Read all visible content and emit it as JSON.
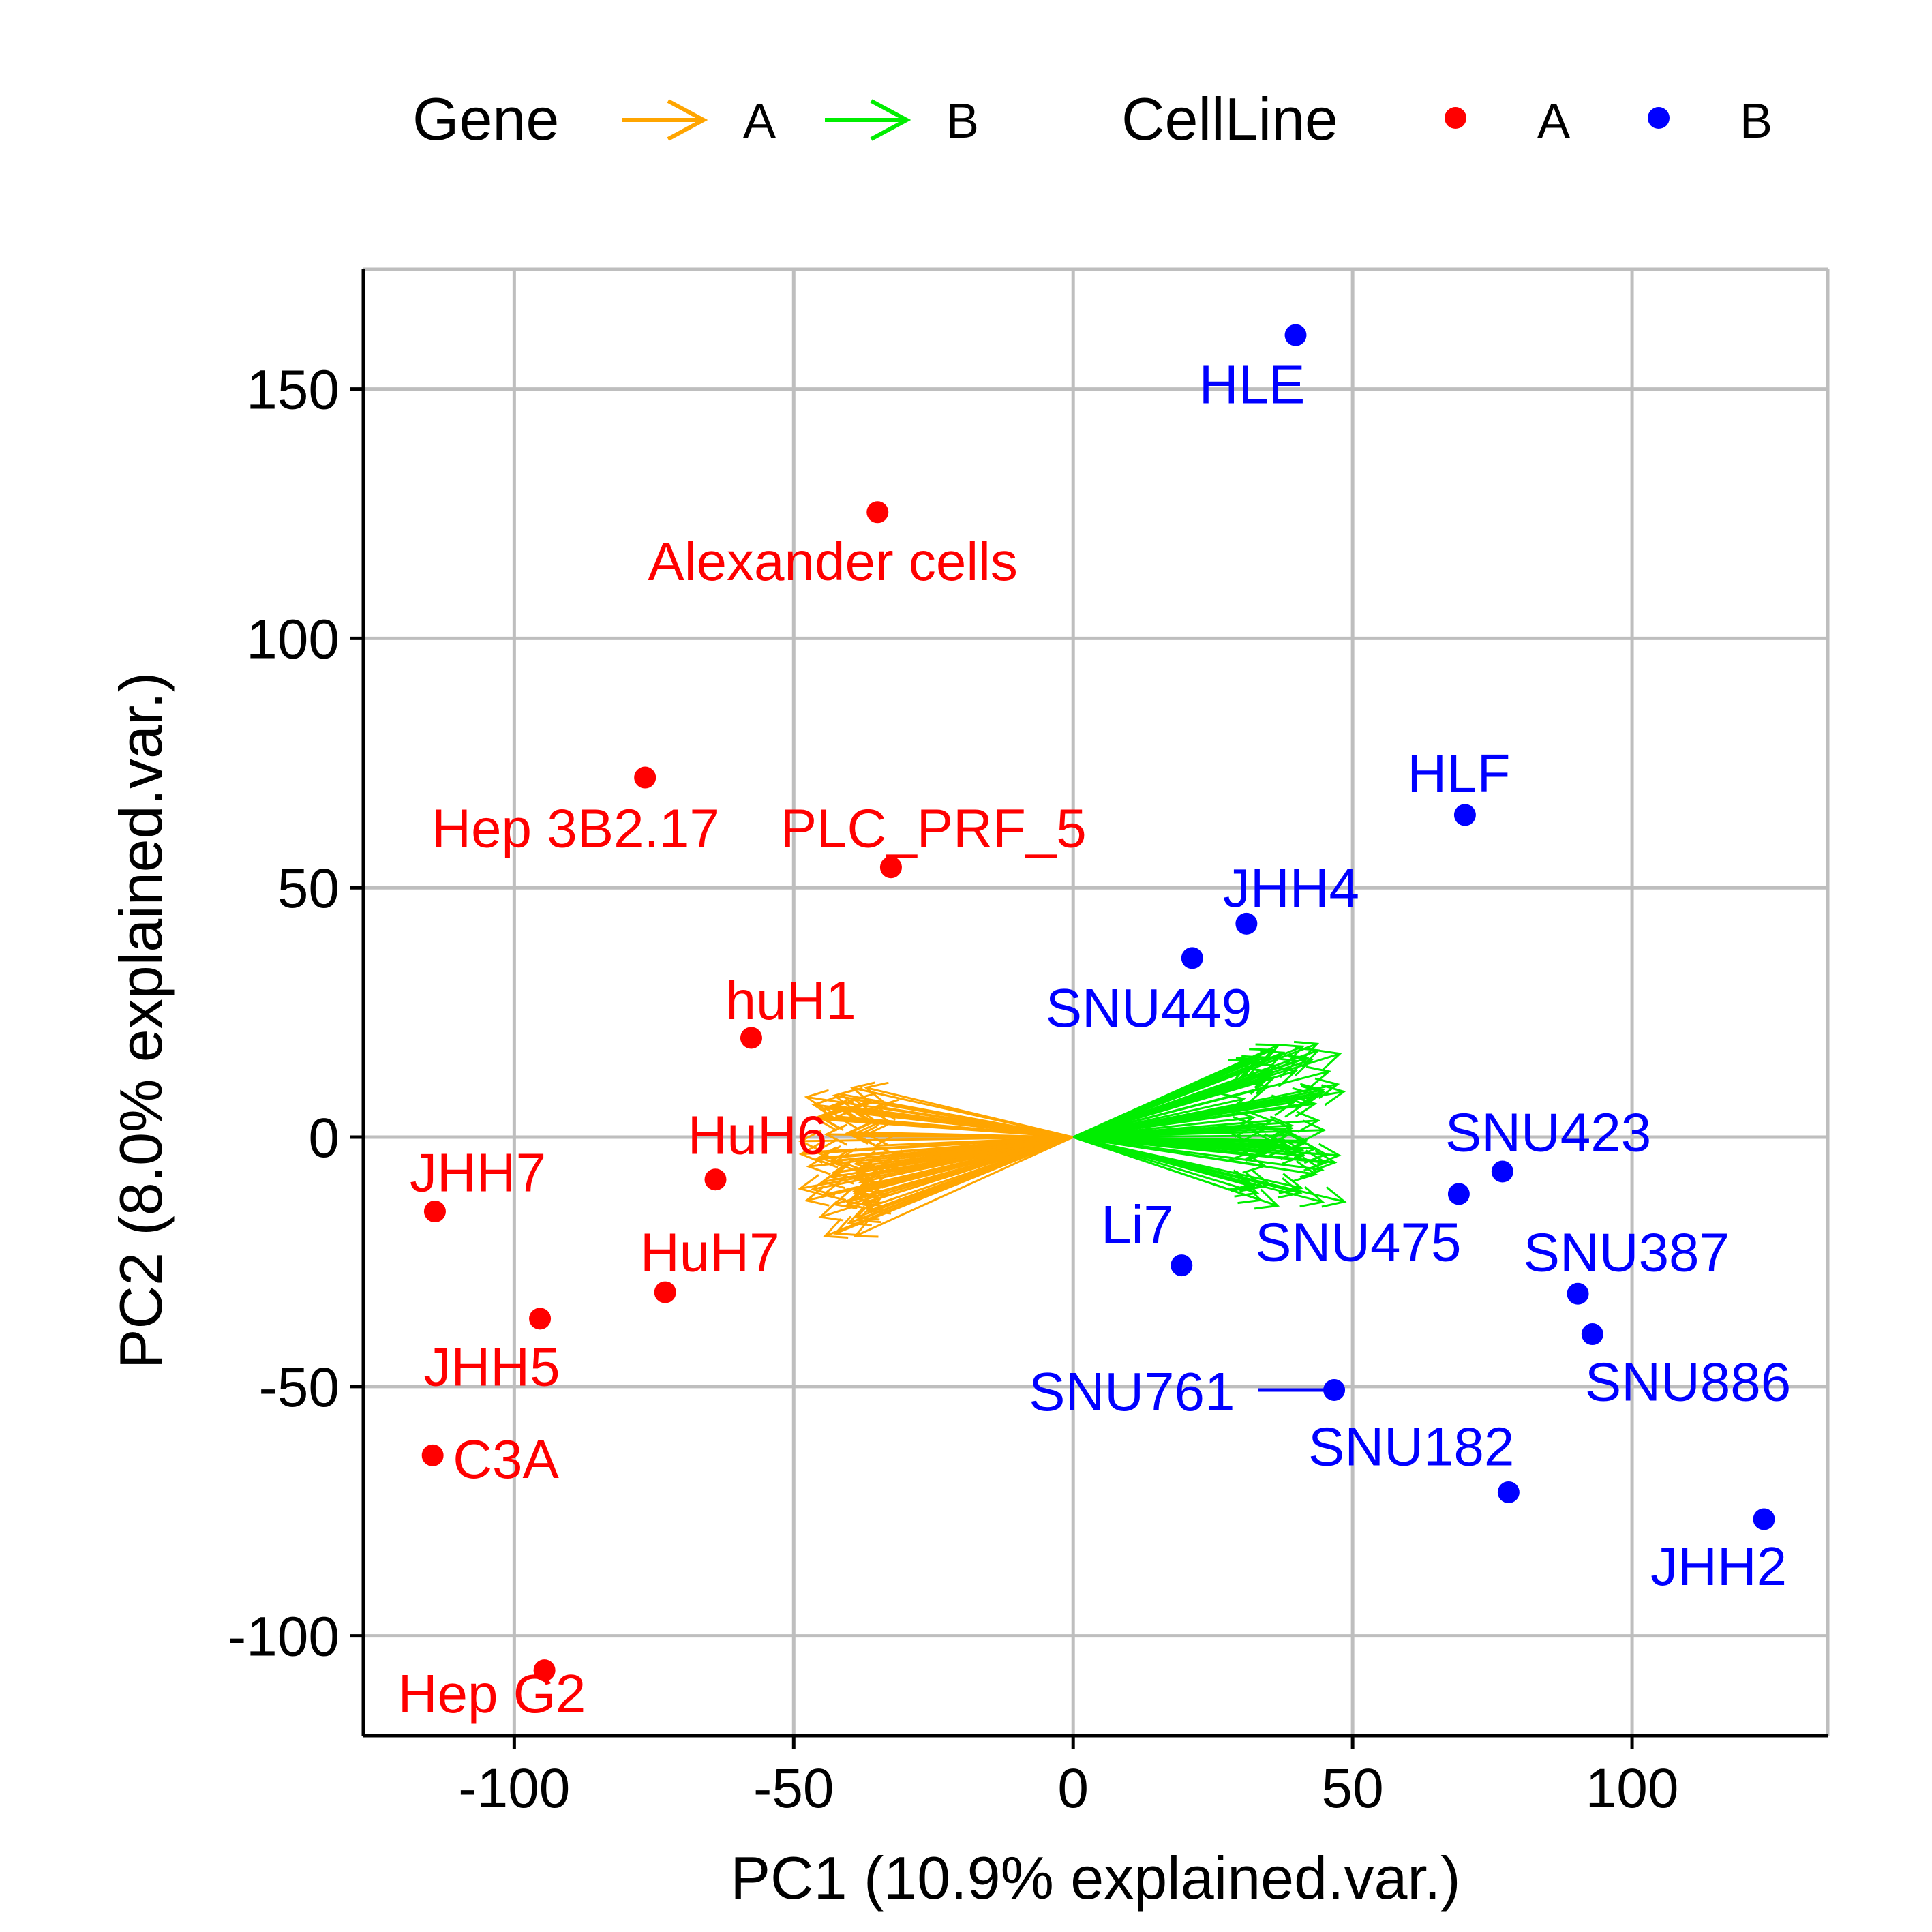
{
  "chart_data": {
    "type": "scatter",
    "xlabel": "PC1 (10.9% explained.var.)",
    "ylabel": "PC2 (8.0% explained.var.)",
    "xlim": [
      -127,
      135
    ],
    "ylim": [
      -120,
      174
    ],
    "xticks": [
      -100,
      -50,
      0,
      50,
      100
    ],
    "yticks": [
      -100,
      -50,
      0,
      50,
      100,
      150
    ],
    "xtick_labels": [
      "-100",
      "-50",
      "0",
      "50",
      "100"
    ],
    "ytick_labels": [
      "-100",
      "-50",
      "0",
      "50",
      "100",
      "150"
    ],
    "grid": true,
    "legend_position": "top",
    "legend": {
      "gene_title": "Gene",
      "gene_keys": [
        {
          "label": "A",
          "color": "#FFA500"
        },
        {
          "label": "B",
          "color": "#00EE00"
        }
      ],
      "cellline_title": "CellLine",
      "cellline_keys": [
        {
          "label": "A",
          "color": "#FF0000"
        },
        {
          "label": "B",
          "color": "#0000FF"
        }
      ]
    },
    "colors": {
      "A": "#FF0000",
      "B": "#0000FF",
      "gene_A": "#FFA500",
      "gene_B": "#00EE00"
    },
    "points": [
      {
        "name": "HLE",
        "group": "B",
        "x": 39.8,
        "y": 160.8,
        "lx": 32.0,
        "ly": 151.0
      },
      {
        "name": "Alexander cells",
        "group": "A",
        "x": -35.0,
        "y": 125.3,
        "lx": -43.0,
        "ly": 115.5
      },
      {
        "name": "Hep 3B2.17",
        "group": "A",
        "x": -76.6,
        "y": 72.1,
        "lx": -89.0,
        "ly": 62.0
      },
      {
        "name": "PLC_PRF_5",
        "group": "A",
        "x": -32.6,
        "y": 54.1,
        "lx": -25.0,
        "ly": 62.0
      },
      {
        "name": "HLF",
        "group": "B",
        "x": 70.1,
        "y": 64.6,
        "lx": 69.0,
        "ly": 73.0
      },
      {
        "name": "JHH4",
        "group": "B",
        "x": 31.0,
        "y": 42.8,
        "lx": 39.0,
        "ly": 50.0
      },
      {
        "name": "SNU449",
        "group": "B",
        "x": 21.3,
        "y": 35.9,
        "lx": 13.5,
        "ly": 26.0
      },
      {
        "name": "huH1",
        "group": "A",
        "x": -57.6,
        "y": 19.9,
        "lx": -50.5,
        "ly": 27.5
      },
      {
        "name": "HuH6",
        "group": "A",
        "x": -64.0,
        "y": -8.5,
        "lx": -56.5,
        "ly": 0.5
      },
      {
        "name": "JHH7",
        "group": "A",
        "x": -114.2,
        "y": -14.9,
        "lx": -106.5,
        "ly": -7.0
      },
      {
        "name": "SNU423",
        "group": "B",
        "x": 76.8,
        "y": -6.9,
        "lx": 85.0,
        "ly": 1.0
      },
      {
        "name": "SNU475",
        "group": "B",
        "x": 69.0,
        "y": -11.4,
        "lx": 51.0,
        "ly": -21.0
      },
      {
        "name": "Li7",
        "group": "B",
        "x": 19.4,
        "y": -25.7,
        "lx": 11.5,
        "ly": -17.5
      },
      {
        "name": "SNU387",
        "group": "B",
        "x": 90.3,
        "y": -31.4,
        "lx": 99.0,
        "ly": -23.0
      },
      {
        "name": "HuH7",
        "group": "A",
        "x": -73.0,
        "y": -31.1,
        "lx": -65.0,
        "ly": -23.0
      },
      {
        "name": "JHH5",
        "group": "A",
        "x": -95.4,
        "y": -36.4,
        "lx": -104.0,
        "ly": -46.0
      },
      {
        "name": "SNU886",
        "group": "B",
        "x": 92.9,
        "y": -39.5,
        "lx": 110.0,
        "ly": -49.0
      },
      {
        "name": "SNU761",
        "group": "B",
        "x": 46.7,
        "y": -50.7,
        "lx": 10.5,
        "ly": -51.0,
        "seg": true
      },
      {
        "name": "C3A",
        "group": "A",
        "x": -114.6,
        "y": -63.8,
        "lx": -101.5,
        "ly": -64.5
      },
      {
        "name": "SNU182",
        "group": "B",
        "x": 77.9,
        "y": -71.2,
        "lx": 60.5,
        "ly": -62.0
      },
      {
        "name": "JHH2",
        "group": "B",
        "x": 123.6,
        "y": -76.6,
        "lx": 115.5,
        "ly": -86.0
      },
      {
        "name": "Hep G2",
        "group": "A",
        "x": -94.6,
        "y": -106.9,
        "lx": -104.0,
        "ly": -111.5
      }
    ],
    "gene_arrows": {
      "A": {
        "x_range": [
          -49,
          -34
        ],
        "y_range": [
          -20,
          10
        ],
        "count": 70
      },
      "B": {
        "x_range": [
          30,
          49
        ],
        "y_range": [
          -14,
          19
        ],
        "count": 70
      }
    }
  }
}
